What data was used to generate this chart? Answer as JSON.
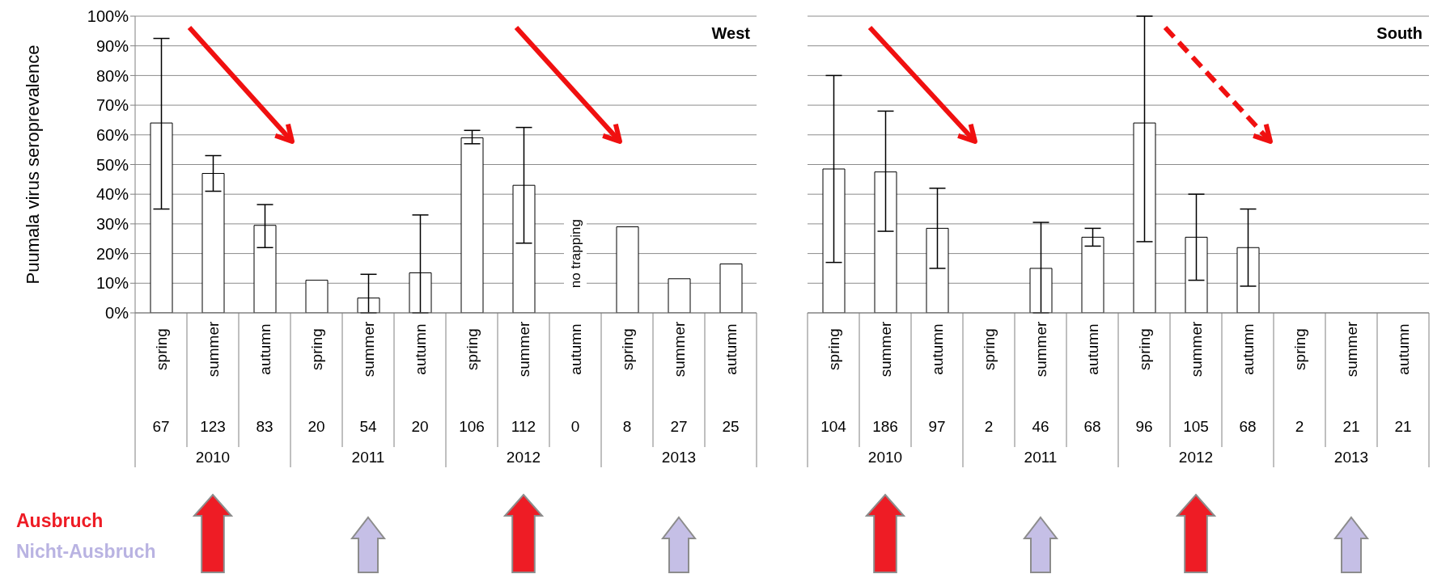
{
  "chart_data": [
    {
      "type": "bar",
      "title": "West",
      "ylabel": "Puumala virus seroprevalence",
      "categories": [
        "spring",
        "summer",
        "autumn",
        "spring",
        "summer",
        "autumn",
        "spring",
        "summer",
        "autumn",
        "spring",
        "summer",
        "autumn"
      ],
      "values": [
        64,
        47,
        29.5,
        11,
        5,
        13.5,
        59,
        43,
        null,
        29,
        11.5,
        16.5
      ],
      "errors": [
        [
          35,
          92.5
        ],
        [
          41,
          53
        ],
        [
          22,
          36.5
        ],
        null,
        [
          0,
          13
        ],
        [
          0,
          33
        ],
        [
          57,
          61.5
        ],
        [
          23.5,
          62.5
        ],
        null,
        null,
        null,
        null
      ],
      "color": "#ffffff",
      "ylim": [
        0,
        100
      ],
      "yticks": [
        {
          "value": 0,
          "label": "0%"
        },
        {
          "value": 10,
          "label": "10%"
        },
        {
          "value": 20,
          "label": "20%"
        },
        {
          "value": 30,
          "label": "30%"
        },
        {
          "value": 40,
          "label": "40%"
        },
        {
          "value": 50,
          "label": "50%"
        },
        {
          "value": 60,
          "label": "60%"
        },
        {
          "value": 70,
          "label": "70%"
        },
        {
          "value": 80,
          "label": "80%"
        },
        {
          "value": 90,
          "label": "90%"
        },
        {
          "value": 100,
          "label": "100%"
        }
      ],
      "grid": "y",
      "annotations": [
        "67",
        "123",
        "83",
        "20",
        "54",
        "20",
        "106",
        "112",
        "0",
        "8",
        "27",
        "25",
        "2010",
        "2011",
        "2012",
        "2013",
        "no trapping",
        "Ausbruch",
        "Nicht-Ausbruch"
      ]
    },
    {
      "type": "bar",
      "title": "South",
      "categories": [
        "spring",
        "summer",
        "autumn",
        "spring",
        "summer",
        "autumn",
        "spring",
        "summer",
        "autumn",
        "spring",
        "summer",
        "autumn"
      ],
      "values": [
        48.5,
        47.5,
        28.5,
        0,
        15,
        25.5,
        64,
        25.5,
        22,
        0,
        0,
        0
      ],
      "errors": [
        [
          17,
          80
        ],
        [
          27.5,
          68
        ],
        [
          15,
          42
        ],
        null,
        [
          0,
          30.5
        ],
        [
          22.5,
          28.5
        ],
        [
          24,
          100
        ],
        [
          11,
          40
        ],
        [
          9,
          35
        ],
        null,
        null,
        null
      ],
      "color": "#ffffff",
      "ylim": [
        0,
        100
      ],
      "yticks": [
        0,
        10,
        20,
        30,
        40,
        50,
        60,
        70,
        80,
        90,
        100
      ],
      "grid": "y",
      "tick_labels": "x",
      "annotations": [
        "104",
        "186",
        "97",
        "2",
        "46",
        "68",
        "96",
        "105",
        "68",
        "2",
        "21",
        "21",
        "2010",
        "2011",
        "2012",
        "2013"
      ]
    }
  ]
}
